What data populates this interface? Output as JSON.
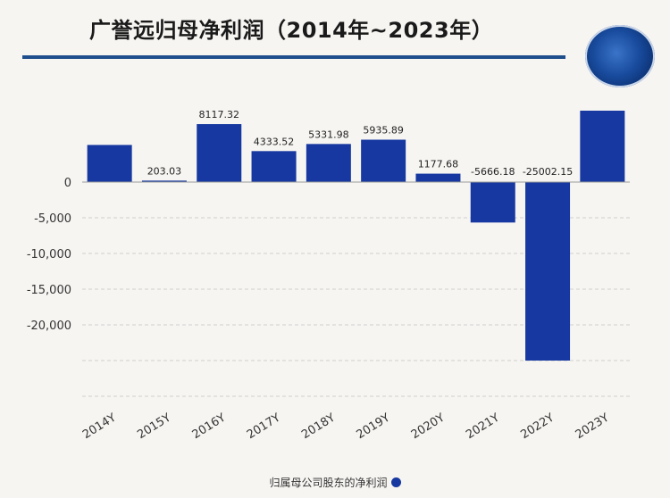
{
  "title": "广誉远归母净利润（2014年~2023年）",
  "chart_data": {
    "type": "bar",
    "categories": [
      "2014Y",
      "2015Y",
      "2016Y",
      "2017Y",
      "2018Y",
      "2019Y",
      "2020Y",
      "2021Y",
      "2022Y",
      "2023Y"
    ],
    "series": [
      {
        "name": "归属母公司股东的净利润",
        "values": [
          5200,
          203.03,
          8117.32,
          4333.52,
          5331.98,
          5935.89,
          1177.68,
          -5666.18,
          -25002.15,
          10000
        ],
        "labels": [
          null,
          "203.03",
          "8117.32",
          "4333.52",
          "5331.98",
          "5935.89",
          "1177.68",
          "-5666.18",
          "-25002.15",
          null
        ]
      }
    ],
    "yticks": [
      0,
      -5000,
      -10000,
      -15000,
      -20000
    ],
    "ytick_labels": [
      "0",
      "-5,000",
      "-10,000",
      "-15,000",
      "-20,000"
    ],
    "ylim": [
      -30000,
      10000
    ],
    "grid": true,
    "legend": "bottom",
    "bar_color": "#1638a0"
  }
}
